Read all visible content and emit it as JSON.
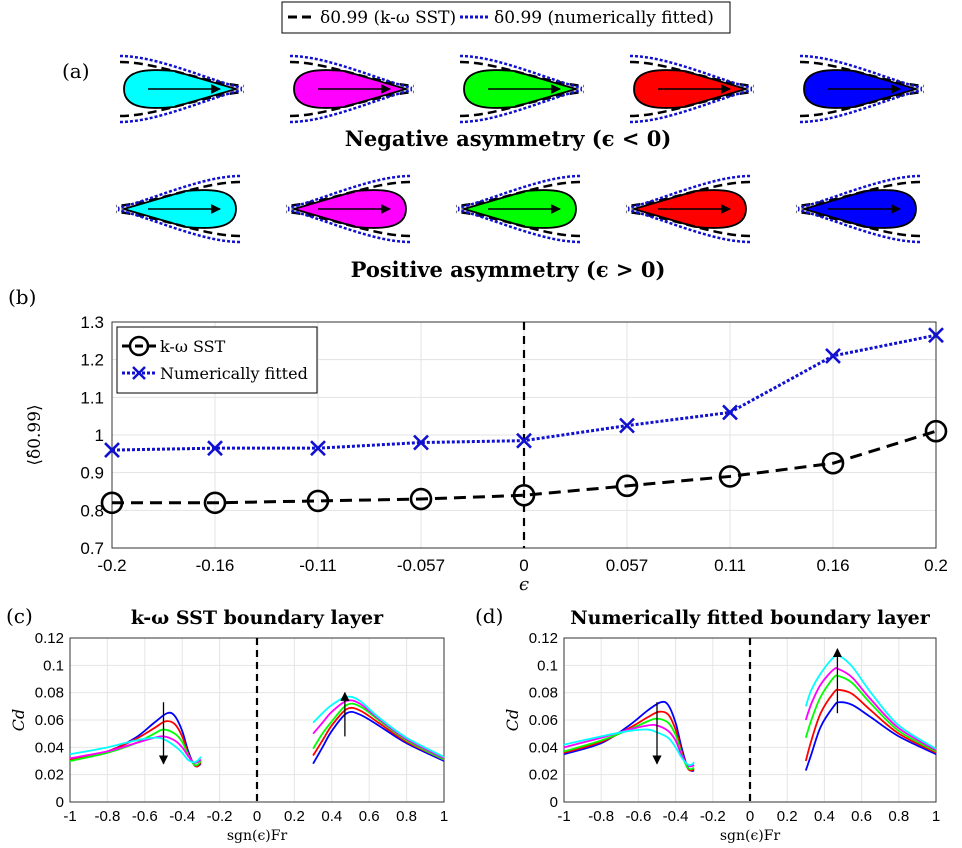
{
  "legend_top": {
    "items": [
      {
        "label": "δ0.99 (k-ω SST)",
        "style": "dashed",
        "color": "#000000"
      },
      {
        "label": "δ0.99 (numerically fitted)",
        "style": "dotted",
        "color": "#1010d0"
      }
    ]
  },
  "panel_a": {
    "label": "(a)",
    "colors": [
      "#00ffff",
      "#ff00ff",
      "#00ff00",
      "#ff0000",
      "#0000ff"
    ],
    "row1_title": "Negative asymmetry (ϵ < 0)",
    "row2_title": "Positive asymmetry (ϵ > 0)"
  },
  "panel_b": {
    "label": "(b)"
  },
  "panel_c": {
    "label": "(c)"
  },
  "panel_d": {
    "label": "(d)"
  },
  "chart_data": [
    {
      "id": "b",
      "type": "line",
      "categories": [
        "-0.2",
        "-0.16",
        "-0.11",
        "-0.057",
        "0",
        "0.057",
        "0.11",
        "0.16",
        "0.2"
      ],
      "xlabel": "ϵ",
      "ylabel": "⟨δ̂0.99⟩",
      "ylim": [
        0.7,
        1.3
      ],
      "yticks": [
        "0.7",
        "0.8",
        "0.9",
        "1",
        "1.1",
        "1.2",
        "1.3"
      ],
      "grid": true,
      "legend_position": "top-left",
      "series": [
        {
          "name": "k-ω SST",
          "color": "#000000",
          "marker": "circle",
          "style": "dashed",
          "values": [
            0.82,
            0.82,
            0.825,
            0.83,
            0.84,
            0.865,
            0.89,
            0.925,
            1.01
          ]
        },
        {
          "name": "Numerically fitted",
          "color": "#1010d0",
          "marker": "x",
          "style": "dotted",
          "values": [
            0.96,
            0.965,
            0.965,
            0.98,
            0.985,
            1.025,
            1.06,
            1.21,
            1.265
          ]
        }
      ]
    },
    {
      "id": "c",
      "type": "line",
      "title": "k-ω SST boundary layer",
      "xlabel": "sgn(ϵ)Fr",
      "ylabel": "Cd",
      "xlim": [
        -1,
        1
      ],
      "ylim": [
        0,
        0.12
      ],
      "xticks": [
        "-1",
        "-0.8",
        "-0.6",
        "-0.4",
        "-0.2",
        "0",
        "0.2",
        "0.4",
        "0.6",
        "0.8",
        "1"
      ],
      "yticks": [
        "0",
        "0.02",
        "0.04",
        "0.06",
        "0.08",
        "0.1",
        "0.12"
      ],
      "grid": true,
      "series": [
        {
          "color": "#0000ff",
          "left": [
            [
              -1,
              0.031
            ],
            [
              -0.8,
              0.037
            ],
            [
              -0.65,
              0.047
            ],
            [
              -0.55,
              0.058
            ],
            [
              -0.48,
              0.065
            ],
            [
              -0.44,
              0.063
            ],
            [
              -0.4,
              0.052
            ],
            [
              -0.37,
              0.038
            ],
            [
              -0.34,
              0.028
            ],
            [
              -0.32,
              0.026
            ],
            [
              -0.3,
              0.028
            ]
          ],
          "right": [
            [
              0.3,
              0.028
            ],
            [
              0.35,
              0.04
            ],
            [
              0.4,
              0.052
            ],
            [
              0.48,
              0.065
            ],
            [
              0.55,
              0.064
            ],
            [
              0.65,
              0.056
            ],
            [
              0.8,
              0.043
            ],
            [
              1,
              0.03
            ]
          ]
        },
        {
          "color": "#ff0000",
          "left": [
            [
              -1,
              0.031
            ],
            [
              -0.8,
              0.037
            ],
            [
              -0.65,
              0.046
            ],
            [
              -0.55,
              0.054
            ],
            [
              -0.49,
              0.059
            ],
            [
              -0.44,
              0.057
            ],
            [
              -0.4,
              0.048
            ],
            [
              -0.37,
              0.036
            ],
            [
              -0.34,
              0.028
            ],
            [
              -0.32,
              0.026
            ],
            [
              -0.3,
              0.029
            ]
          ],
          "right": [
            [
              0.3,
              0.034
            ],
            [
              0.35,
              0.045
            ],
            [
              0.4,
              0.056
            ],
            [
              0.48,
              0.068
            ],
            [
              0.55,
              0.067
            ],
            [
              0.65,
              0.058
            ],
            [
              0.8,
              0.044
            ],
            [
              1,
              0.031
            ]
          ]
        },
        {
          "color": "#00ff00",
          "left": [
            [
              -1,
              0.03
            ],
            [
              -0.8,
              0.036
            ],
            [
              -0.65,
              0.043
            ],
            [
              -0.55,
              0.05
            ],
            [
              -0.5,
              0.053
            ],
            [
              -0.44,
              0.05
            ],
            [
              -0.4,
              0.044
            ],
            [
              -0.37,
              0.035
            ],
            [
              -0.34,
              0.028
            ],
            [
              -0.32,
              0.027
            ],
            [
              -0.3,
              0.03
            ]
          ],
          "right": [
            [
              0.3,
              0.039
            ],
            [
              0.35,
              0.05
            ],
            [
              0.4,
              0.059
            ],
            [
              0.48,
              0.071
            ],
            [
              0.55,
              0.07
            ],
            [
              0.65,
              0.06
            ],
            [
              0.8,
              0.045
            ],
            [
              1,
              0.031
            ]
          ]
        },
        {
          "color": "#ff00ff",
          "left": [
            [
              -1,
              0.032
            ],
            [
              -0.8,
              0.037
            ],
            [
              -0.65,
              0.043
            ],
            [
              -0.55,
              0.047
            ],
            [
              -0.5,
              0.048
            ],
            [
              -0.44,
              0.045
            ],
            [
              -0.4,
              0.04
            ],
            [
              -0.37,
              0.034
            ],
            [
              -0.34,
              0.029
            ],
            [
              -0.32,
              0.029
            ],
            [
              -0.3,
              0.031
            ]
          ],
          "right": [
            [
              0.3,
              0.05
            ],
            [
              0.35,
              0.058
            ],
            [
              0.4,
              0.066
            ],
            [
              0.48,
              0.074
            ],
            [
              0.55,
              0.072
            ],
            [
              0.65,
              0.061
            ],
            [
              0.8,
              0.046
            ],
            [
              1,
              0.032
            ]
          ]
        },
        {
          "color": "#00ffff",
          "left": [
            [
              -1,
              0.035
            ],
            [
              -0.8,
              0.04
            ],
            [
              -0.65,
              0.045
            ],
            [
              -0.55,
              0.047
            ],
            [
              -0.5,
              0.046
            ],
            [
              -0.44,
              0.041
            ],
            [
              -0.4,
              0.036
            ],
            [
              -0.37,
              0.031
            ],
            [
              -0.34,
              0.029
            ],
            [
              -0.32,
              0.03
            ],
            [
              -0.3,
              0.033
            ]
          ],
          "right": [
            [
              0.3,
              0.058
            ],
            [
              0.35,
              0.065
            ],
            [
              0.4,
              0.071
            ],
            [
              0.48,
              0.077
            ],
            [
              0.55,
              0.074
            ],
            [
              0.65,
              0.062
            ],
            [
              0.8,
              0.047
            ],
            [
              1,
              0.033
            ]
          ]
        }
      ]
    },
    {
      "id": "d",
      "type": "line",
      "title": "Numerically fitted boundary layer",
      "xlabel": "sgn(ϵ)Fr",
      "ylabel": "Cd",
      "xlim": [
        -1,
        1
      ],
      "ylim": [
        0,
        0.12
      ],
      "xticks": [
        "-1",
        "-0.8",
        "-0.6",
        "-0.4",
        "-0.2",
        "0",
        "0.2",
        "0.4",
        "0.6",
        "0.8",
        "1"
      ],
      "yticks": [
        "0",
        "0.02",
        "0.04",
        "0.06",
        "0.08",
        "0.1",
        "0.12"
      ],
      "grid": true,
      "series": [
        {
          "color": "#0000ff",
          "left": [
            [
              -1,
              0.035
            ],
            [
              -0.8,
              0.043
            ],
            [
              -0.65,
              0.056
            ],
            [
              -0.55,
              0.067
            ],
            [
              -0.48,
              0.073
            ],
            [
              -0.44,
              0.071
            ],
            [
              -0.4,
              0.058
            ],
            [
              -0.37,
              0.041
            ],
            [
              -0.34,
              0.027
            ],
            [
              -0.32,
              0.023
            ],
            [
              -0.3,
              0.023
            ]
          ],
          "right": [
            [
              0.3,
              0.023
            ],
            [
              0.33,
              0.035
            ],
            [
              0.38,
              0.055
            ],
            [
              0.45,
              0.07
            ],
            [
              0.48,
              0.073
            ],
            [
              0.55,
              0.071
            ],
            [
              0.65,
              0.062
            ],
            [
              0.8,
              0.048
            ],
            [
              1,
              0.035
            ]
          ]
        },
        {
          "color": "#ff0000",
          "left": [
            [
              -1,
              0.036
            ],
            [
              -0.8,
              0.044
            ],
            [
              -0.65,
              0.054
            ],
            [
              -0.55,
              0.062
            ],
            [
              -0.49,
              0.066
            ],
            [
              -0.44,
              0.064
            ],
            [
              -0.4,
              0.053
            ],
            [
              -0.37,
              0.038
            ],
            [
              -0.34,
              0.026
            ],
            [
              -0.32,
              0.023
            ],
            [
              -0.3,
              0.024
            ]
          ],
          "right": [
            [
              0.3,
              0.03
            ],
            [
              0.33,
              0.045
            ],
            [
              0.38,
              0.065
            ],
            [
              0.45,
              0.08
            ],
            [
              0.48,
              0.082
            ],
            [
              0.55,
              0.079
            ],
            [
              0.65,
              0.067
            ],
            [
              0.8,
              0.05
            ],
            [
              1,
              0.036
            ]
          ]
        },
        {
          "color": "#00ff00",
          "left": [
            [
              -1,
              0.037
            ],
            [
              -0.8,
              0.045
            ],
            [
              -0.65,
              0.053
            ],
            [
              -0.55,
              0.059
            ],
            [
              -0.5,
              0.061
            ],
            [
              -0.44,
              0.058
            ],
            [
              -0.4,
              0.049
            ],
            [
              -0.37,
              0.036
            ],
            [
              -0.34,
              0.026
            ],
            [
              -0.32,
              0.024
            ],
            [
              -0.3,
              0.025
            ]
          ],
          "right": [
            [
              0.3,
              0.047
            ],
            [
              0.33,
              0.06
            ],
            [
              0.38,
              0.077
            ],
            [
              0.45,
              0.091
            ],
            [
              0.48,
              0.092
            ],
            [
              0.55,
              0.087
            ],
            [
              0.65,
              0.072
            ],
            [
              0.8,
              0.052
            ],
            [
              1,
              0.037
            ]
          ]
        },
        {
          "color": "#ff00ff",
          "left": [
            [
              -1,
              0.04
            ],
            [
              -0.8,
              0.047
            ],
            [
              -0.65,
              0.053
            ],
            [
              -0.55,
              0.056
            ],
            [
              -0.5,
              0.056
            ],
            [
              -0.44,
              0.052
            ],
            [
              -0.4,
              0.045
            ],
            [
              -0.37,
              0.035
            ],
            [
              -0.34,
              0.028
            ],
            [
              -0.32,
              0.026
            ],
            [
              -0.3,
              0.027
            ]
          ],
          "right": [
            [
              0.3,
              0.06
            ],
            [
              0.33,
              0.072
            ],
            [
              0.38,
              0.086
            ],
            [
              0.45,
              0.097
            ],
            [
              0.48,
              0.097
            ],
            [
              0.55,
              0.091
            ],
            [
              0.65,
              0.075
            ],
            [
              0.8,
              0.054
            ],
            [
              1,
              0.038
            ]
          ]
        },
        {
          "color": "#00ffff",
          "left": [
            [
              -1,
              0.042
            ],
            [
              -0.8,
              0.048
            ],
            [
              -0.65,
              0.052
            ],
            [
              -0.55,
              0.053
            ],
            [
              -0.5,
              0.051
            ],
            [
              -0.44,
              0.047
            ],
            [
              -0.4,
              0.04
            ],
            [
              -0.37,
              0.033
            ],
            [
              -0.34,
              0.028
            ],
            [
              -0.32,
              0.027
            ],
            [
              -0.3,
              0.029
            ]
          ],
          "right": [
            [
              0.3,
              0.07
            ],
            [
              0.33,
              0.082
            ],
            [
              0.38,
              0.094
            ],
            [
              0.45,
              0.106
            ],
            [
              0.48,
              0.107
            ],
            [
              0.55,
              0.099
            ],
            [
              0.65,
              0.08
            ],
            [
              0.8,
              0.056
            ],
            [
              1,
              0.039
            ]
          ]
        }
      ]
    }
  ]
}
